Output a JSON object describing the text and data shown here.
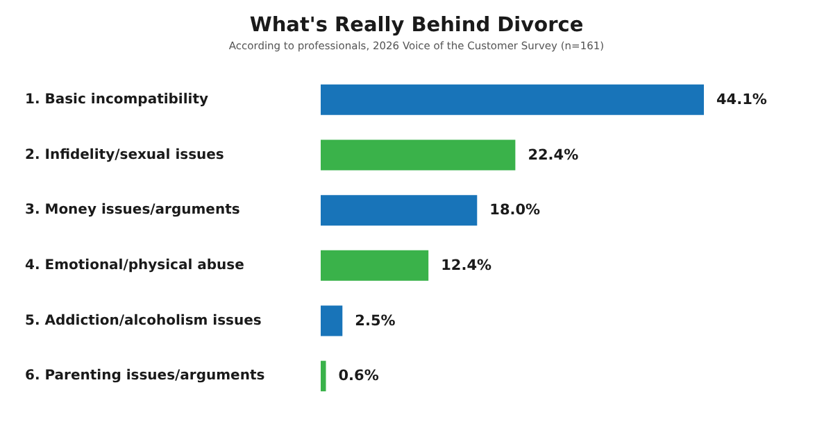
{
  "chart_data": {
    "type": "bar",
    "orientation": "horizontal",
    "title": "What's Really Behind Divorce",
    "subtitle": "According to professionals, 2026 Voice of the Customer Survey (n=161)",
    "categories": [
      "1. Basic incompatibility",
      "2. Infidelity/sexual issues",
      "3. Money issues/arguments",
      "4. Emotional/physical abuse",
      "5. Addiction/alcoholism issues",
      "6. Parenting issues/arguments"
    ],
    "values": [
      44.1,
      22.4,
      18.0,
      12.4,
      2.5,
      0.6
    ],
    "colors": [
      "#1874b9",
      "#3ab24a",
      "#1874b9",
      "#3ab24a",
      "#1874b9",
      "#3ab24a"
    ],
    "value_labels": [
      "44.1%",
      "22.4%",
      "18.0%",
      "12.4%",
      "2.5%",
      "0.6%"
    ]
  }
}
